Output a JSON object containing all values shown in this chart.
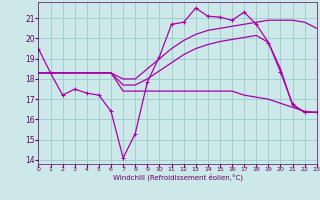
{
  "xlabel": "Windchill (Refroidissement éolien,°C)",
  "bg_color": "#cce8e8",
  "grid_color": "#99cccc",
  "line_color": "#aa00aa",
  "xlim": [
    0,
    23
  ],
  "ylim": [
    13.8,
    21.8
  ],
  "yticks": [
    14,
    15,
    16,
    17,
    18,
    19,
    20,
    21
  ],
  "xticks": [
    0,
    1,
    2,
    3,
    4,
    5,
    6,
    7,
    8,
    9,
    10,
    11,
    12,
    13,
    14,
    15,
    16,
    17,
    18,
    19,
    20,
    21,
    22,
    23
  ],
  "curve1_x": [
    0,
    1,
    2,
    3,
    4,
    5,
    6,
    7,
    8,
    9,
    10,
    11,
    12,
    13,
    14,
    15,
    16,
    17,
    18,
    19,
    20,
    21,
    22,
    23
  ],
  "curve1_y": [
    19.5,
    18.3,
    17.2,
    17.5,
    17.3,
    17.2,
    16.4,
    14.1,
    15.3,
    17.85,
    19.1,
    20.7,
    20.8,
    21.5,
    21.1,
    21.05,
    20.9,
    21.3,
    20.7,
    19.8,
    18.35,
    16.75,
    16.35,
    16.35
  ],
  "curve2_x": [
    0,
    1,
    2,
    3,
    4,
    5,
    6,
    7,
    8,
    9,
    10,
    11,
    12,
    13,
    14,
    15,
    16,
    17,
    18,
    19,
    20,
    21,
    22,
    23
  ],
  "curve2_y": [
    18.3,
    18.3,
    18.3,
    18.3,
    18.3,
    18.3,
    18.3,
    17.4,
    17.4,
    17.4,
    17.4,
    17.4,
    17.4,
    17.4,
    17.4,
    17.4,
    17.4,
    17.2,
    17.1,
    17.0,
    16.8,
    16.6,
    16.4,
    16.35
  ],
  "curve3_x": [
    0,
    1,
    2,
    3,
    4,
    5,
    6,
    7,
    8,
    9,
    10,
    11,
    12,
    13,
    14,
    15,
    16,
    17,
    18,
    19,
    20,
    21,
    22,
    23
  ],
  "curve3_y": [
    18.3,
    18.3,
    18.3,
    18.3,
    18.3,
    18.3,
    18.3,
    18.0,
    18.0,
    18.5,
    19.0,
    19.5,
    19.9,
    20.2,
    20.4,
    20.5,
    20.6,
    20.7,
    20.8,
    20.9,
    20.9,
    20.9,
    20.8,
    20.5
  ],
  "curve4_x": [
    0,
    1,
    2,
    3,
    4,
    5,
    6,
    7,
    8,
    9,
    10,
    11,
    12,
    13,
    14,
    15,
    16,
    17,
    18,
    19,
    20,
    21,
    22,
    23
  ],
  "curve4_y": [
    18.3,
    18.3,
    18.3,
    18.3,
    18.3,
    18.3,
    18.3,
    17.7,
    17.7,
    18.0,
    18.4,
    18.8,
    19.2,
    19.5,
    19.7,
    19.85,
    19.95,
    20.05,
    20.15,
    19.8,
    18.5,
    16.7,
    16.35,
    16.35
  ]
}
